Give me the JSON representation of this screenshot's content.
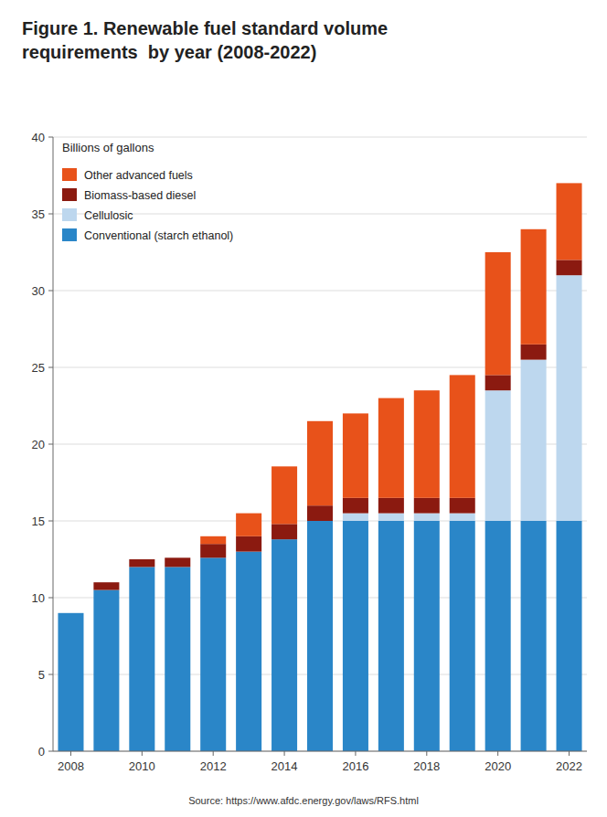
{
  "chart_data": {
    "type": "bar",
    "stacked": true,
    "title": "Figure 1. Renewable fuel standard volume\nrequirements  by year (2008-2022)",
    "ylabel": "Billions of gallons",
    "annotations": [
      "Source: https://www.afdc.energy.gov/laws/RFS.html"
    ],
    "categories": [
      "2008",
      null,
      "2010",
      null,
      "2012",
      null,
      "2014",
      null,
      "2016",
      null,
      "2018",
      null,
      "2020",
      null,
      "2022"
    ],
    "series": [
      {
        "name": "Conventional (starch ethanol)",
        "color": "#2a86c8",
        "values": [
          9.0,
          10.5,
          12.0,
          12.0,
          12.6,
          13.0,
          13.8,
          15.0,
          15.0,
          15.0,
          15.0,
          15.0,
          15.0,
          15.0,
          15.0
        ]
      },
      {
        "name": "Cellulosic",
        "color": "#bdd7ee",
        "values": [
          0.0,
          0.0,
          0.0,
          0.0,
          0.0,
          0.0,
          0.0,
          0.0,
          0.5,
          0.5,
          0.5,
          0.5,
          8.5,
          10.5,
          16.0
        ]
      },
      {
        "name": "Biomass-based diesel",
        "color": "#8b1a10",
        "values": [
          0.0,
          0.5,
          0.5,
          0.6,
          0.9,
          1.0,
          1.0,
          1.0,
          1.0,
          1.0,
          1.0,
          1.0,
          1.0,
          1.0,
          1.0
        ]
      },
      {
        "name": "Other advanced fuels",
        "color": "#e8521a",
        "values": [
          0.0,
          0.0,
          0.0,
          0.0,
          0.5,
          1.5,
          3.75,
          5.5,
          5.5,
          6.5,
          7.0,
          8.0,
          8.0,
          7.5,
          5.0
        ]
      }
    ],
    "ylim": [
      0,
      40
    ],
    "yticks": [
      0,
      5,
      10,
      15,
      20,
      25,
      30,
      35,
      40
    ],
    "grid": true,
    "legend": "upper left"
  }
}
